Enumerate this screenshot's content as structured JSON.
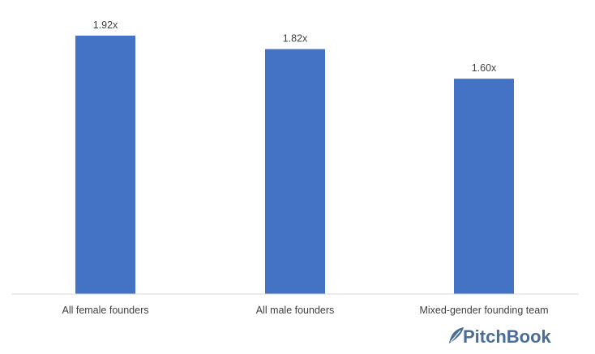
{
  "chart_data": {
    "type": "bar",
    "categories": [
      "All female founders",
      "All male founders",
      "Mixed-gender founding team"
    ],
    "values": [
      1.92,
      1.82,
      1.6
    ],
    "data_labels": [
      "1.92x",
      "1.82x",
      "1.60x"
    ],
    "ylim": [
      0,
      1.92
    ],
    "grid": false,
    "legend": "none",
    "colors": {
      "bar": "#4472c4",
      "axis": "#d9d9d9",
      "text": "#404040"
    }
  },
  "brand": {
    "name": "PitchBook",
    "color": "#4a6d96"
  }
}
